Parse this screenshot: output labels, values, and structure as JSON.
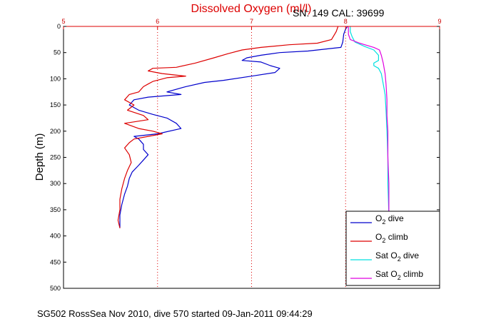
{
  "chart_data": {
    "type": "line",
    "title": "Dissolved Oxygen (ml/l)",
    "subtitle": "SN: 149  CAL: 39699",
    "ylabel": "Depth (m)",
    "footer": "SG502 RossSea Nov 2010, dive 570 started 09-Jan-2011 09:44:29",
    "xlim": [
      5,
      9
    ],
    "ylim": [
      0,
      500
    ],
    "y_reversed": true,
    "x_axis_position": "top",
    "x_ticks": [
      "5",
      "6",
      "7",
      "8",
      "9"
    ],
    "y_ticks": [
      "0",
      "50",
      "100",
      "150",
      "200",
      "250",
      "300",
      "350",
      "400",
      "450",
      "500"
    ],
    "grid": true,
    "legend_position": "bottom-right",
    "colors": {
      "o2_dive": "#0000cc",
      "o2_climb": "#dd0000",
      "sat_dive": "#00e0e0",
      "sat_climb": "#e000e0",
      "axis_x": "#dd0000",
      "axis_y": "#000000"
    },
    "series": [
      {
        "name": "O2 dive",
        "legend_main": "O",
        "legend_sub": "2",
        "legend_after": " dive",
        "key": "o2_dive",
        "points": [
          [
            8.02,
            0
          ],
          [
            8.0,
            5
          ],
          [
            7.98,
            15
          ],
          [
            7.97,
            30
          ],
          [
            7.95,
            40
          ],
          [
            7.6,
            47
          ],
          [
            7.3,
            50
          ],
          [
            7.1,
            55
          ],
          [
            6.95,
            60
          ],
          [
            6.9,
            65
          ],
          [
            7.1,
            68
          ],
          [
            7.2,
            75
          ],
          [
            7.3,
            80
          ],
          [
            7.25,
            88
          ],
          [
            7.0,
            95
          ],
          [
            6.7,
            103
          ],
          [
            6.5,
            107
          ],
          [
            6.3,
            115
          ],
          [
            6.1,
            125
          ],
          [
            6.25,
            130
          ],
          [
            5.9,
            135
          ],
          [
            5.75,
            140
          ],
          [
            5.7,
            150
          ],
          [
            5.8,
            160
          ],
          [
            5.95,
            168
          ],
          [
            6.1,
            175
          ],
          [
            6.2,
            185
          ],
          [
            6.25,
            195
          ],
          [
            6.0,
            205
          ],
          [
            5.75,
            210
          ],
          [
            5.8,
            215
          ],
          [
            5.85,
            225
          ],
          [
            5.85,
            235
          ],
          [
            5.9,
            245
          ],
          [
            5.85,
            255
          ],
          [
            5.8,
            265
          ],
          [
            5.73,
            278
          ],
          [
            5.7,
            290
          ],
          [
            5.68,
            305
          ],
          [
            5.65,
            320
          ],
          [
            5.62,
            340
          ],
          [
            5.6,
            360
          ],
          [
            5.6,
            385
          ]
        ]
      },
      {
        "name": "O2 climb",
        "legend_main": "O",
        "legend_sub": "2",
        "legend_after": " climb",
        "key": "o2_climb",
        "points": [
          [
            7.92,
            0
          ],
          [
            7.9,
            10
          ],
          [
            7.85,
            25
          ],
          [
            7.7,
            32
          ],
          [
            7.4,
            35
          ],
          [
            7.1,
            40
          ],
          [
            6.9,
            45
          ],
          [
            6.75,
            52
          ],
          [
            6.6,
            60
          ],
          [
            6.4,
            70
          ],
          [
            6.2,
            78
          ],
          [
            5.95,
            80
          ],
          [
            5.9,
            85
          ],
          [
            6.05,
            90
          ],
          [
            6.3,
            95
          ],
          [
            6.1,
            98
          ],
          [
            5.95,
            105
          ],
          [
            5.9,
            110
          ],
          [
            5.85,
            115
          ],
          [
            5.8,
            125
          ],
          [
            5.7,
            130
          ],
          [
            5.65,
            140
          ],
          [
            5.75,
            150
          ],
          [
            5.68,
            160
          ],
          [
            5.85,
            170
          ],
          [
            5.9,
            178
          ],
          [
            5.65,
            185
          ],
          [
            5.8,
            195
          ],
          [
            5.95,
            200
          ],
          [
            6.05,
            205
          ],
          [
            5.9,
            210
          ],
          [
            5.75,
            215
          ],
          [
            5.7,
            222
          ],
          [
            5.65,
            232
          ],
          [
            5.7,
            245
          ],
          [
            5.72,
            260
          ],
          [
            5.68,
            275
          ],
          [
            5.65,
            290
          ],
          [
            5.62,
            310
          ],
          [
            5.6,
            330
          ],
          [
            5.6,
            350
          ],
          [
            5.58,
            370
          ],
          [
            5.6,
            385
          ]
        ]
      },
      {
        "name": "Sat O2 dive",
        "legend_main": "Sat O",
        "legend_sub": "2",
        "legend_after": " dive",
        "key": "sat_dive",
        "points": [
          [
            8.05,
            0
          ],
          [
            8.05,
            10
          ],
          [
            8.07,
            20
          ],
          [
            8.1,
            30
          ],
          [
            8.2,
            38
          ],
          [
            8.3,
            45
          ],
          [
            8.35,
            55
          ],
          [
            8.35,
            65
          ],
          [
            8.3,
            70
          ],
          [
            8.3,
            75
          ],
          [
            8.35,
            80
          ],
          [
            8.38,
            90
          ],
          [
            8.4,
            110
          ],
          [
            8.42,
            130
          ],
          [
            8.43,
            160
          ],
          [
            8.44,
            200
          ],
          [
            8.45,
            250
          ],
          [
            8.45,
            300
          ],
          [
            8.46,
            360
          ]
        ]
      },
      {
        "name": "Sat O2 climb",
        "legend_main": "Sat O",
        "legend_sub": "2",
        "legend_after": " climb",
        "key": "sat_climb",
        "points": [
          [
            8.03,
            0
          ],
          [
            8.03,
            15
          ],
          [
            8.05,
            25
          ],
          [
            8.15,
            32
          ],
          [
            8.3,
            40
          ],
          [
            8.36,
            45
          ],
          [
            8.38,
            55
          ],
          [
            8.4,
            70
          ],
          [
            8.42,
            90
          ],
          [
            8.43,
            110
          ],
          [
            8.44,
            140
          ],
          [
            8.44,
            170
          ],
          [
            8.45,
            200
          ],
          [
            8.45,
            250
          ],
          [
            8.46,
            300
          ],
          [
            8.46,
            360
          ]
        ]
      }
    ]
  }
}
